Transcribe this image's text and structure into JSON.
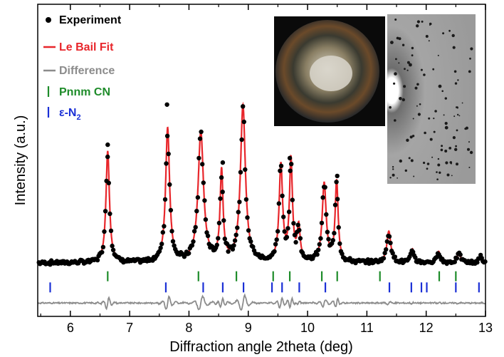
{
  "chart_data": {
    "type": "scatter",
    "xlabel": "Diffraction angle 2theta (deg)",
    "ylabel": "Intensity (a.u.)",
    "xlim": [
      5.45,
      13.0
    ],
    "ylim": [
      -22,
      118
    ],
    "x_ticks": [
      "6",
      "7",
      "8",
      "9",
      "10",
      "11",
      "12",
      "13"
    ],
    "y_ticks_shown": false,
    "grid": false,
    "legend_position": "top-left",
    "legend": [
      {
        "key": "experiment",
        "label": "Experiment",
        "color": "#000000",
        "marker": "dot"
      },
      {
        "key": "fit",
        "label": "Le Bail Fit",
        "color": "#e8262b",
        "marker": "line"
      },
      {
        "key": "difference",
        "label": "Difference",
        "color": "#8c8c8c",
        "marker": "line"
      },
      {
        "key": "cn",
        "label": "Pnnm CN",
        "color": "#1e8c2a",
        "marker": "tick"
      },
      {
        "key": "n2",
        "label": "ε-N",
        "subscript": "2",
        "color": "#1a2fd6",
        "marker": "tick"
      }
    ],
    "baseline": 2,
    "peaks": [
      {
        "x": 6.63,
        "height": 50,
        "width": 0.035
      },
      {
        "x": 7.64,
        "height": 60,
        "width": 0.04
      },
      {
        "x": 8.2,
        "height": 58,
        "width": 0.055
      },
      {
        "x": 8.55,
        "height": 40,
        "width": 0.03
      },
      {
        "x": 8.91,
        "height": 70,
        "width": 0.05
      },
      {
        "x": 9.55,
        "height": 43,
        "width": 0.035
      },
      {
        "x": 9.72,
        "height": 45,
        "width": 0.03
      },
      {
        "x": 9.85,
        "height": 15,
        "width": 0.03
      },
      {
        "x": 10.28,
        "height": 35,
        "width": 0.04
      },
      {
        "x": 10.49,
        "height": 36,
        "width": 0.03
      },
      {
        "x": 11.37,
        "height": 14,
        "width": 0.04
      },
      {
        "x": 11.77,
        "height": 6,
        "width": 0.03
      },
      {
        "x": 12.21,
        "height": 5,
        "width": 0.03
      },
      {
        "x": 12.55,
        "height": 4,
        "width": 0.04
      },
      {
        "x": 12.92,
        "height": 3,
        "width": 0.03
      }
    ],
    "experiment_outliers": [
      {
        "x": 6.63,
        "y": 55
      },
      {
        "x": 7.63,
        "y": 73
      },
      {
        "x": 8.57,
        "y": 47
      },
      {
        "x": 9.7,
        "y": 49
      },
      {
        "x": 10.5,
        "y": 41
      }
    ],
    "cn_ticks": [
      6.63,
      8.16,
      8.8,
      9.42,
      9.7,
      10.24,
      10.5,
      11.22,
      12.22,
      12.5
    ],
    "n2_ticks": [
      5.66,
      7.61,
      8.24,
      8.57,
      8.92,
      9.4,
      9.57,
      9.86,
      10.3,
      11.38,
      11.75,
      11.92,
      12.01,
      12.5,
      12.89
    ],
    "tick_rows": {
      "cn": -4,
      "n2": -9
    },
    "difference_offset": -16
  }
}
